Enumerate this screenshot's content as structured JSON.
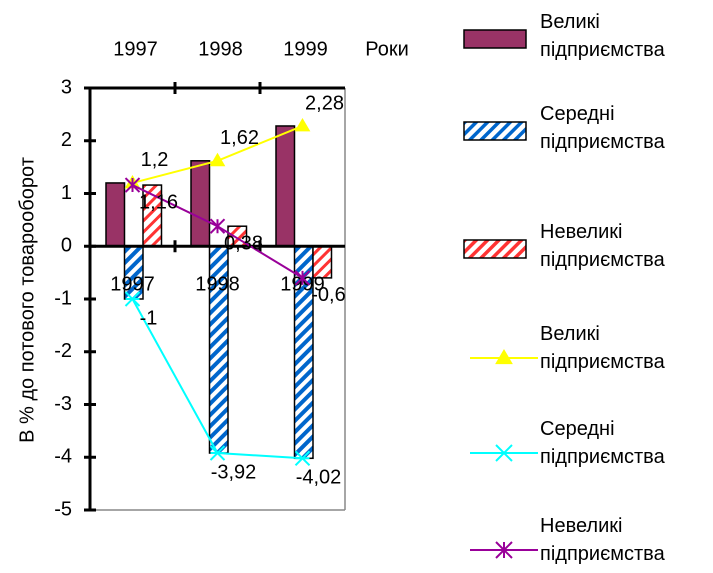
{
  "chart_data": {
    "type": "bar",
    "x_title": "Роки",
    "y_title": "В % до потового товарооборот",
    "categories": [
      "1997",
      "1998",
      "1999"
    ],
    "ylim": [
      -5,
      3
    ],
    "yticks": [
      -5,
      -4,
      -3,
      -2,
      -1,
      0,
      1,
      2,
      3
    ],
    "series": [
      {
        "name": "Великі підприємства",
        "type": "bar",
        "color": "#993366",
        "pattern": "solid",
        "values": [
          1.2,
          1.62,
          2.28
        ]
      },
      {
        "name": "Середні підприємства",
        "type": "bar",
        "color": "#0066cc",
        "pattern": "hatch",
        "values": [
          -1,
          -3.92,
          -4.02
        ]
      },
      {
        "name": "Невеликі підприємства",
        "type": "bar",
        "color": "#ff3333",
        "pattern": "hatch",
        "values": [
          1.16,
          0.38,
          -0.6
        ]
      },
      {
        "name": "Великі підприємства",
        "type": "line",
        "color": "#ffff00",
        "marker": "triangle",
        "values": [
          1.2,
          1.62,
          2.28
        ],
        "value_labels": [
          "1,2",
          "1,62",
          "2,28"
        ]
      },
      {
        "name": "Середні підприємства",
        "type": "line",
        "color": "#00ffff",
        "marker": "star",
        "values": [
          -1,
          -3.92,
          -4.02
        ],
        "value_labels": [
          "-1",
          "-3,92",
          "-4,02"
        ]
      },
      {
        "name": "Невеликі підприємства",
        "type": "line",
        "color": "#990099",
        "marker": "asterisk",
        "values": [
          1.16,
          0.38,
          -0.6
        ],
        "value_labels": [
          "1,16",
          "0,38",
          "-0,6"
        ]
      }
    ]
  }
}
